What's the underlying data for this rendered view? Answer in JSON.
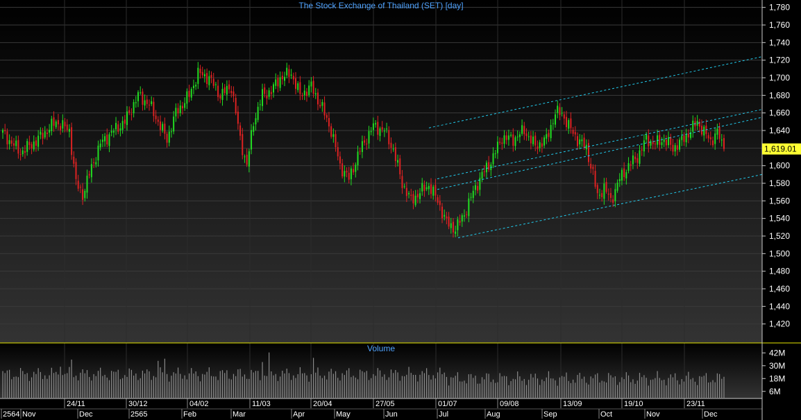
{
  "colors": {
    "up": "#22dd22",
    "down": "#dd2222",
    "channel": "#22ccee",
    "grid": "#3a3a3a",
    "volume": "#8a8a8a",
    "title": "#4fa3ff",
    "separator": "#e8e800",
    "price_tag": "#ffff33"
  },
  "chart_data": [
    {
      "type": "candlestick",
      "title": "The Stock Exchange of Thailand (SET) [day]",
      "ylim": [
        1400,
        1790
      ],
      "y_ticks": [
        "1,780",
        "1,760",
        "1,740",
        "1,720",
        "1,700",
        "1,680",
        "1,660",
        "1,640",
        "1,620",
        "1,600",
        "1,580",
        "1,560",
        "1,540",
        "1,520",
        "1,500",
        "1,480",
        "1,460",
        "1,440",
        "1,420"
      ],
      "last_price": "1,619.01",
      "grid": true,
      "week_labels": [
        "24/11",
        "30/12",
        "04/02",
        "11/03",
        "20/04",
        "27/05",
        "01/07",
        "09/08",
        "13/09",
        "19/10",
        "23/11"
      ],
      "month_labels": [
        "2564",
        "Nov",
        "Dec",
        "2565",
        "Feb",
        "Mar",
        "Apr",
        "May",
        "Jun",
        "Jul",
        "Aug",
        "Sep",
        "Oct",
        "Nov",
        "Dec"
      ],
      "anchors": [
        [
          0,
          1637
        ],
        [
          8,
          1615
        ],
        [
          15,
          1628
        ],
        [
          24,
          1650
        ],
        [
          30,
          1640
        ],
        [
          33,
          1580
        ],
        [
          36,
          1567
        ],
        [
          40,
          1598
        ],
        [
          44,
          1625
        ],
        [
          50,
          1640
        ],
        [
          55,
          1650
        ],
        [
          61,
          1680
        ],
        [
          66,
          1670
        ],
        [
          70,
          1650
        ],
        [
          74,
          1630
        ],
        [
          78,
          1660
        ],
        [
          84,
          1680
        ],
        [
          88,
          1705
        ],
        [
          93,
          1700
        ],
        [
          98,
          1680
        ],
        [
          103,
          1690
        ],
        [
          107,
          1630
        ],
        [
          110,
          1600
        ],
        [
          113,
          1650
        ],
        [
          117,
          1680
        ],
        [
          121,
          1685
        ],
        [
          125,
          1700
        ],
        [
          130,
          1705
        ],
        [
          134,
          1680
        ],
        [
          139,
          1690
        ],
        [
          144,
          1665
        ],
        [
          148,
          1640
        ],
        [
          152,
          1600
        ],
        [
          156,
          1585
        ],
        [
          161,
          1618
        ],
        [
          167,
          1645
        ],
        [
          172,
          1640
        ],
        [
          176,
          1618
        ],
        [
          180,
          1580
        ],
        [
          184,
          1560
        ],
        [
          188,
          1570
        ],
        [
          192,
          1578
        ],
        [
          196,
          1560
        ],
        [
          200,
          1535
        ],
        [
          204,
          1528
        ],
        [
          208,
          1545
        ],
        [
          212,
          1570
        ],
        [
          216,
          1590
        ],
        [
          220,
          1605
        ],
        [
          225,
          1632
        ],
        [
          230,
          1630
        ],
        [
          235,
          1640
        ],
        [
          240,
          1622
        ],
        [
          245,
          1630
        ],
        [
          249,
          1660
        ],
        [
          252,
          1660
        ],
        [
          255,
          1645
        ],
        [
          259,
          1630
        ],
        [
          263,
          1620
        ],
        [
          266,
          1590
        ],
        [
          268,
          1565
        ],
        [
          271,
          1575
        ],
        [
          274,
          1560
        ],
        [
          278,
          1585
        ],
        [
          282,
          1600
        ],
        [
          286,
          1610
        ],
        [
          290,
          1630
        ],
        [
          294,
          1625
        ],
        [
          298,
          1630
        ],
        [
          302,
          1620
        ],
        [
          306,
          1628
        ],
        [
          310,
          1640
        ],
        [
          313,
          1650
        ],
        [
          316,
          1638
        ],
        [
          319,
          1628
        ],
        [
          322,
          1638
        ],
        [
          325,
          1619
        ]
      ],
      "channels": [
        {
          "x1": 618,
          "v1": 1643,
          "x2": 1098,
          "v2": 1724
        },
        {
          "x1": 630,
          "v1": 1585,
          "x2": 1098,
          "v2": 1664
        },
        {
          "x1": 630,
          "v1": 1573,
          "x2": 1098,
          "v2": 1655
        },
        {
          "x1": 660,
          "v1": 1518,
          "x2": 1098,
          "v2": 1590
        }
      ]
    },
    {
      "type": "bar",
      "title": "Volume",
      "ylim": [
        0,
        50
      ],
      "y_ticks": [
        "42M",
        "30M",
        "18M",
        "6M"
      ],
      "y_tick_values": [
        42,
        30,
        18,
        6
      ]
    }
  ]
}
